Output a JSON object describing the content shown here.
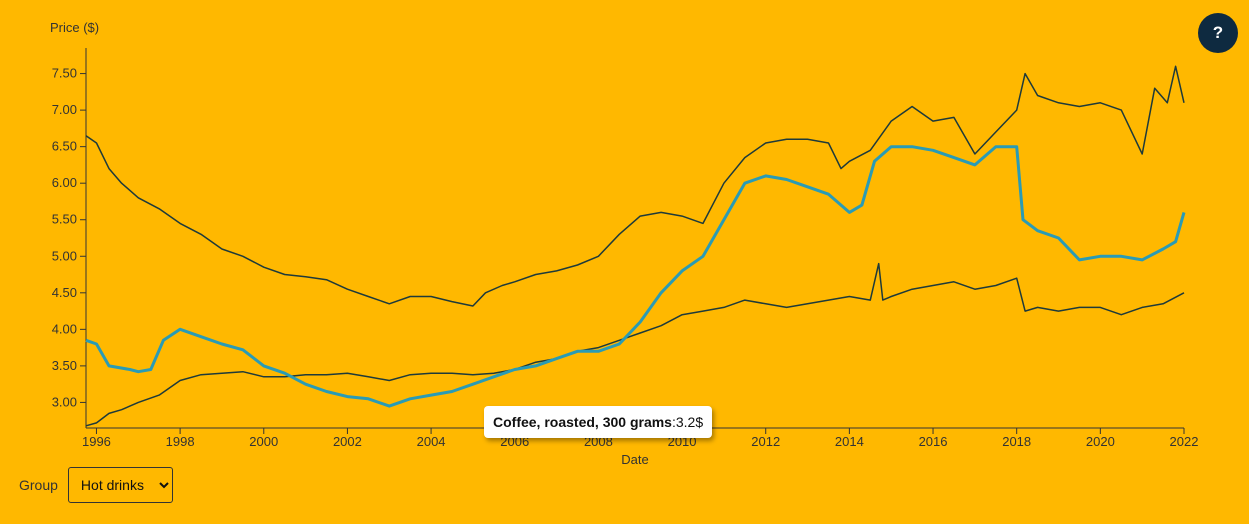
{
  "help_button": {
    "label": "?"
  },
  "group_control": {
    "label": "Group",
    "selected": "Hot drinks"
  },
  "tooltip": {
    "series": "Coffee, roasted, 300 grams",
    "value": "3.2$"
  },
  "chart_data": {
    "type": "line",
    "xlabel": "Date",
    "ylabel": "Price ($)",
    "xlim": [
      1995.75,
      2022.0
    ],
    "ylim": [
      2.65,
      7.85
    ],
    "x_ticks": [
      1996,
      1998,
      2000,
      2002,
      2004,
      2006,
      2008,
      2010,
      2012,
      2014,
      2016,
      2018,
      2020,
      2022
    ],
    "y_ticks": [
      "3.00",
      "3.50",
      "4.00",
      "4.50",
      "5.00",
      "5.50",
      "6.00",
      "6.50",
      "7.00",
      "7.50"
    ],
    "highlight_color": "#2A9BB5",
    "line_color": "#1E3A3A",
    "series": [
      {
        "highlighted": false,
        "x": [
          1995.75,
          1996.0,
          1996.3,
          1996.6,
          1997.0,
          1997.5,
          1998.0,
          1998.5,
          1999.0,
          1999.5,
          2000.0,
          2000.5,
          2001.0,
          2001.5,
          2002.0,
          2002.5,
          2003.0,
          2003.5,
          2004.0,
          2004.5,
          2005.0,
          2005.3,
          2005.7,
          2006.0,
          2006.5,
          2007.0,
          2007.5,
          2008.0,
          2008.5,
          2009.0,
          2009.5,
          2010.0,
          2010.5,
          2011.0,
          2011.5,
          2012.0,
          2012.5,
          2013.0,
          2013.5,
          2013.8,
          2014.0,
          2014.5,
          2015.0,
          2015.5,
          2016.0,
          2016.5,
          2017.0,
          2017.5,
          2018.0,
          2018.2,
          2018.5,
          2019.0,
          2019.5,
          2020.0,
          2020.5,
          2021.0,
          2021.3,
          2021.6,
          2021.8,
          2022.0
        ],
        "y": [
          6.65,
          6.55,
          6.2,
          6.0,
          5.8,
          5.65,
          5.45,
          5.3,
          5.1,
          5.0,
          4.85,
          4.75,
          4.72,
          4.68,
          4.55,
          4.45,
          4.35,
          4.45,
          4.45,
          4.38,
          4.32,
          4.5,
          4.6,
          4.65,
          4.75,
          4.8,
          4.88,
          5.0,
          5.3,
          5.55,
          5.6,
          5.55,
          5.45,
          6.0,
          6.35,
          6.55,
          6.6,
          6.6,
          6.55,
          6.2,
          6.3,
          6.45,
          6.85,
          7.05,
          6.85,
          6.9,
          6.4,
          6.7,
          7.0,
          7.5,
          7.2,
          7.1,
          7.05,
          7.1,
          7.0,
          6.4,
          7.3,
          7.1,
          7.6,
          7.1
        ]
      },
      {
        "highlighted": true,
        "x": [
          1995.75,
          1996.0,
          1996.3,
          1996.8,
          1997.0,
          1997.3,
          1997.6,
          1998.0,
          1998.5,
          1999.0,
          1999.5,
          2000.0,
          2000.5,
          2001.0,
          2001.5,
          2002.0,
          2002.5,
          2003.0,
          2003.5,
          2004.0,
          2004.5,
          2005.0,
          2005.5,
          2006.0,
          2006.5,
          2007.0,
          2007.5,
          2008.0,
          2008.5,
          2009.0,
          2009.5,
          2010.0,
          2010.5,
          2011.0,
          2011.5,
          2012.0,
          2012.5,
          2013.0,
          2013.5,
          2014.0,
          2014.3,
          2014.6,
          2015.0,
          2015.5,
          2016.0,
          2016.5,
          2017.0,
          2017.5,
          2018.0,
          2018.15,
          2018.5,
          2019.0,
          2019.5,
          2020.0,
          2020.5,
          2021.0,
          2021.5,
          2021.8,
          2022.0
        ],
        "y": [
          3.85,
          3.8,
          3.5,
          3.45,
          3.42,
          3.45,
          3.85,
          4.0,
          3.9,
          3.8,
          3.72,
          3.5,
          3.4,
          3.25,
          3.15,
          3.08,
          3.05,
          2.95,
          3.05,
          3.1,
          3.15,
          3.25,
          3.35,
          3.45,
          3.5,
          3.6,
          3.7,
          3.7,
          3.8,
          4.1,
          4.5,
          4.8,
          5.0,
          5.5,
          6.0,
          6.1,
          6.05,
          5.95,
          5.85,
          5.6,
          5.7,
          6.3,
          6.5,
          6.5,
          6.45,
          6.35,
          6.25,
          6.5,
          6.5,
          5.5,
          5.35,
          5.25,
          4.95,
          5.0,
          5.0,
          4.95,
          5.1,
          5.2,
          5.6
        ]
      },
      {
        "highlighted": false,
        "x": [
          1995.75,
          1996.0,
          1996.3,
          1996.6,
          1997.0,
          1997.5,
          1998.0,
          1998.5,
          1999.0,
          1999.5,
          2000.0,
          2000.5,
          2001.0,
          2001.5,
          2002.0,
          2002.5,
          2003.0,
          2003.5,
          2004.0,
          2004.5,
          2005.0,
          2005.5,
          2006.0,
          2006.5,
          2007.0,
          2007.5,
          2008.0,
          2008.5,
          2009.0,
          2009.5,
          2010.0,
          2010.5,
          2011.0,
          2011.5,
          2012.0,
          2012.5,
          2013.0,
          2013.5,
          2014.0,
          2014.5,
          2014.7,
          2014.8,
          2015.0,
          2015.5,
          2016.0,
          2016.5,
          2017.0,
          2017.5,
          2018.0,
          2018.2,
          2018.5,
          2019.0,
          2019.5,
          2020.0,
          2020.5,
          2021.0,
          2021.5,
          2022.0
        ],
        "y": [
          2.68,
          2.72,
          2.85,
          2.9,
          3.0,
          3.1,
          3.3,
          3.38,
          3.4,
          3.42,
          3.35,
          3.35,
          3.38,
          3.38,
          3.4,
          3.35,
          3.3,
          3.38,
          3.4,
          3.4,
          3.38,
          3.4,
          3.45,
          3.55,
          3.6,
          3.7,
          3.75,
          3.85,
          3.95,
          4.05,
          4.2,
          4.25,
          4.3,
          4.4,
          4.35,
          4.3,
          4.35,
          4.4,
          4.45,
          4.4,
          4.9,
          4.4,
          4.45,
          4.55,
          4.6,
          4.65,
          4.55,
          4.6,
          4.7,
          4.25,
          4.3,
          4.25,
          4.3,
          4.3,
          4.2,
          4.3,
          4.35,
          4.5
        ]
      }
    ]
  }
}
